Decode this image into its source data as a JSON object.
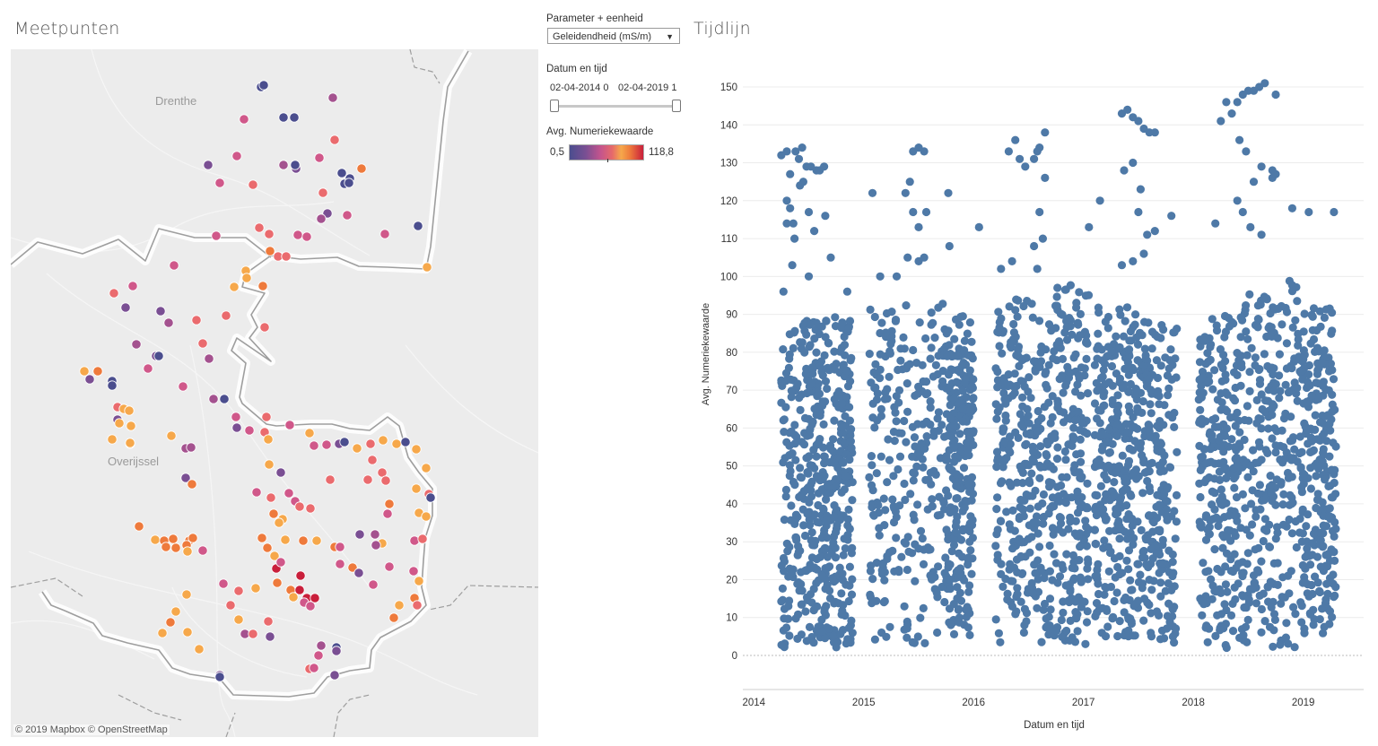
{
  "map": {
    "title": "Meetpunten",
    "labels": {
      "drenthe": "Drenthe",
      "overijssel": "Overijssel"
    },
    "attribution": "© 2019 Mapbox  © OpenStreetMap",
    "colors": {
      "background": "#ececec",
      "border": "#9e9e9e",
      "border_glow": "#ffffff"
    }
  },
  "filters": {
    "parameter_label": "Parameter + eenheid",
    "parameter_value": "Geleidendheid (mS/m)",
    "date_label": "Datum en tijd",
    "date_start": "02-04-2014 0",
    "date_end": "02-04-2019 1",
    "legend_label": "Avg. Numeriekewaarde",
    "legend_min": "0,5",
    "legend_max": "118,8"
  },
  "timeline": {
    "title": "Tijdlijn",
    "xlabel": "Datum en tijd",
    "ylabel": "Avg. Numeriekewaarde",
    "y_ticks": [
      "0",
      "10",
      "20",
      "30",
      "40",
      "50",
      "60",
      "70",
      "80",
      "90",
      "100",
      "110",
      "120",
      "130",
      "140",
      "150"
    ],
    "x_ticks": [
      "2014",
      "2015",
      "2016",
      "2017",
      "2018",
      "2019"
    ],
    "point_color": "#4e79a7"
  },
  "chart_data": {
    "type": "scatter",
    "title": "Tijdlijn",
    "xlabel": "Datum en tijd",
    "ylabel": "Avg. Numeriekewaarde",
    "xlim": [
      2013.9,
      2019.55
    ],
    "ylim": [
      0,
      155
    ],
    "grid": true,
    "color": "#4e79a7",
    "dense_bands": [
      {
        "x": [
          2014.25,
          2014.62
        ],
        "y": [
          2,
          78
        ]
      },
      {
        "x": [
          2014.62,
          2014.9
        ],
        "y": [
          2,
          78
        ]
      },
      {
        "x": [
          2015.05,
          2015.75
        ],
        "y": [
          3,
          82
        ]
      },
      {
        "x": [
          2015.75,
          2016.0
        ],
        "y": [
          5,
          78
        ]
      },
      {
        "x": [
          2016.2,
          2016.65
        ],
        "y": [
          3,
          82
        ]
      },
      {
        "x": [
          2016.65,
          2017.05
        ],
        "y": [
          3,
          86
        ]
      },
      {
        "x": [
          2017.1,
          2017.45
        ],
        "y": [
          5,
          80
        ]
      },
      {
        "x": [
          2017.45,
          2017.85
        ],
        "y": [
          3,
          78
        ]
      },
      {
        "x": [
          2018.05,
          2018.45
        ],
        "y": [
          2,
          78
        ]
      },
      {
        "x": [
          2018.45,
          2018.95
        ],
        "y": [
          2,
          88
        ]
      },
      {
        "x": [
          2018.95,
          2019.3
        ],
        "y": [
          5,
          80
        ]
      }
    ],
    "outliers": [
      [
        2014.25,
        132
      ],
      [
        2014.3,
        133
      ],
      [
        2014.33,
        127
      ],
      [
        2014.38,
        133
      ],
      [
        2014.41,
        131
      ],
      [
        2014.44,
        134
      ],
      [
        2014.48,
        129
      ],
      [
        2014.52,
        129
      ],
      [
        2014.57,
        128
      ],
      [
        2014.6,
        128
      ],
      [
        2014.64,
        129
      ],
      [
        2014.3,
        120
      ],
      [
        2014.33,
        118
      ],
      [
        2014.36,
        114
      ],
      [
        2014.42,
        124
      ],
      [
        2014.45,
        125
      ],
      [
        2014.5,
        117
      ],
      [
        2014.55,
        112
      ],
      [
        2014.3,
        114
      ],
      [
        2014.37,
        110
      ],
      [
        2014.65,
        116
      ],
      [
        2014.7,
        105
      ],
      [
        2014.5,
        100
      ],
      [
        2014.27,
        96
      ],
      [
        2014.35,
        103
      ],
      [
        2014.85,
        96
      ],
      [
        2015.08,
        122
      ],
      [
        2015.38,
        122
      ],
      [
        2015.42,
        125
      ],
      [
        2015.45,
        133
      ],
      [
        2015.5,
        134
      ],
      [
        2015.55,
        133
      ],
      [
        2015.45,
        117
      ],
      [
        2015.5,
        113
      ],
      [
        2015.57,
        117
      ],
      [
        2015.77,
        122
      ],
      [
        2015.78,
        108
      ],
      [
        2015.4,
        105
      ],
      [
        2015.5,
        104
      ],
      [
        2015.55,
        105
      ],
      [
        2015.15,
        100
      ],
      [
        2015.3,
        100
      ],
      [
        2016.32,
        133
      ],
      [
        2016.38,
        136
      ],
      [
        2016.42,
        131
      ],
      [
        2016.47,
        129
      ],
      [
        2016.55,
        131
      ],
      [
        2016.58,
        133
      ],
      [
        2016.6,
        134
      ],
      [
        2016.65,
        138
      ],
      [
        2016.65,
        126
      ],
      [
        2016.6,
        117
      ],
      [
        2016.55,
        108
      ],
      [
        2016.05,
        113
      ],
      [
        2016.25,
        102
      ],
      [
        2016.35,
        104
      ],
      [
        2016.58,
        102
      ],
      [
        2016.63,
        110
      ],
      [
        2017.05,
        113
      ],
      [
        2017.35,
        143
      ],
      [
        2017.4,
        144
      ],
      [
        2017.45,
        142
      ],
      [
        2017.5,
        141
      ],
      [
        2017.55,
        139
      ],
      [
        2017.6,
        138
      ],
      [
        2017.65,
        138
      ],
      [
        2017.37,
        128
      ],
      [
        2017.45,
        130
      ],
      [
        2017.5,
        117
      ],
      [
        2017.52,
        123
      ],
      [
        2017.58,
        111
      ],
      [
        2017.65,
        112
      ],
      [
        2017.8,
        116
      ],
      [
        2017.15,
        120
      ],
      [
        2017.35,
        103
      ],
      [
        2017.45,
        104
      ],
      [
        2017.55,
        106
      ],
      [
        2018.25,
        141
      ],
      [
        2018.3,
        146
      ],
      [
        2018.35,
        143
      ],
      [
        2018.4,
        146
      ],
      [
        2018.45,
        148
      ],
      [
        2018.5,
        149
      ],
      [
        2018.55,
        149
      ],
      [
        2018.6,
        150
      ],
      [
        2018.65,
        151
      ],
      [
        2018.75,
        148
      ],
      [
        2018.42,
        136
      ],
      [
        2018.48,
        133
      ],
      [
        2018.55,
        125
      ],
      [
        2018.62,
        129
      ],
      [
        2018.72,
        128
      ],
      [
        2018.72,
        126
      ],
      [
        2018.75,
        127
      ],
      [
        2018.4,
        120
      ],
      [
        2018.45,
        117
      ],
      [
        2018.52,
        113
      ],
      [
        2018.62,
        111
      ],
      [
        2018.9,
        118
      ],
      [
        2018.2,
        114
      ],
      [
        2019.05,
        117
      ],
      [
        2019.28,
        117
      ]
    ]
  }
}
